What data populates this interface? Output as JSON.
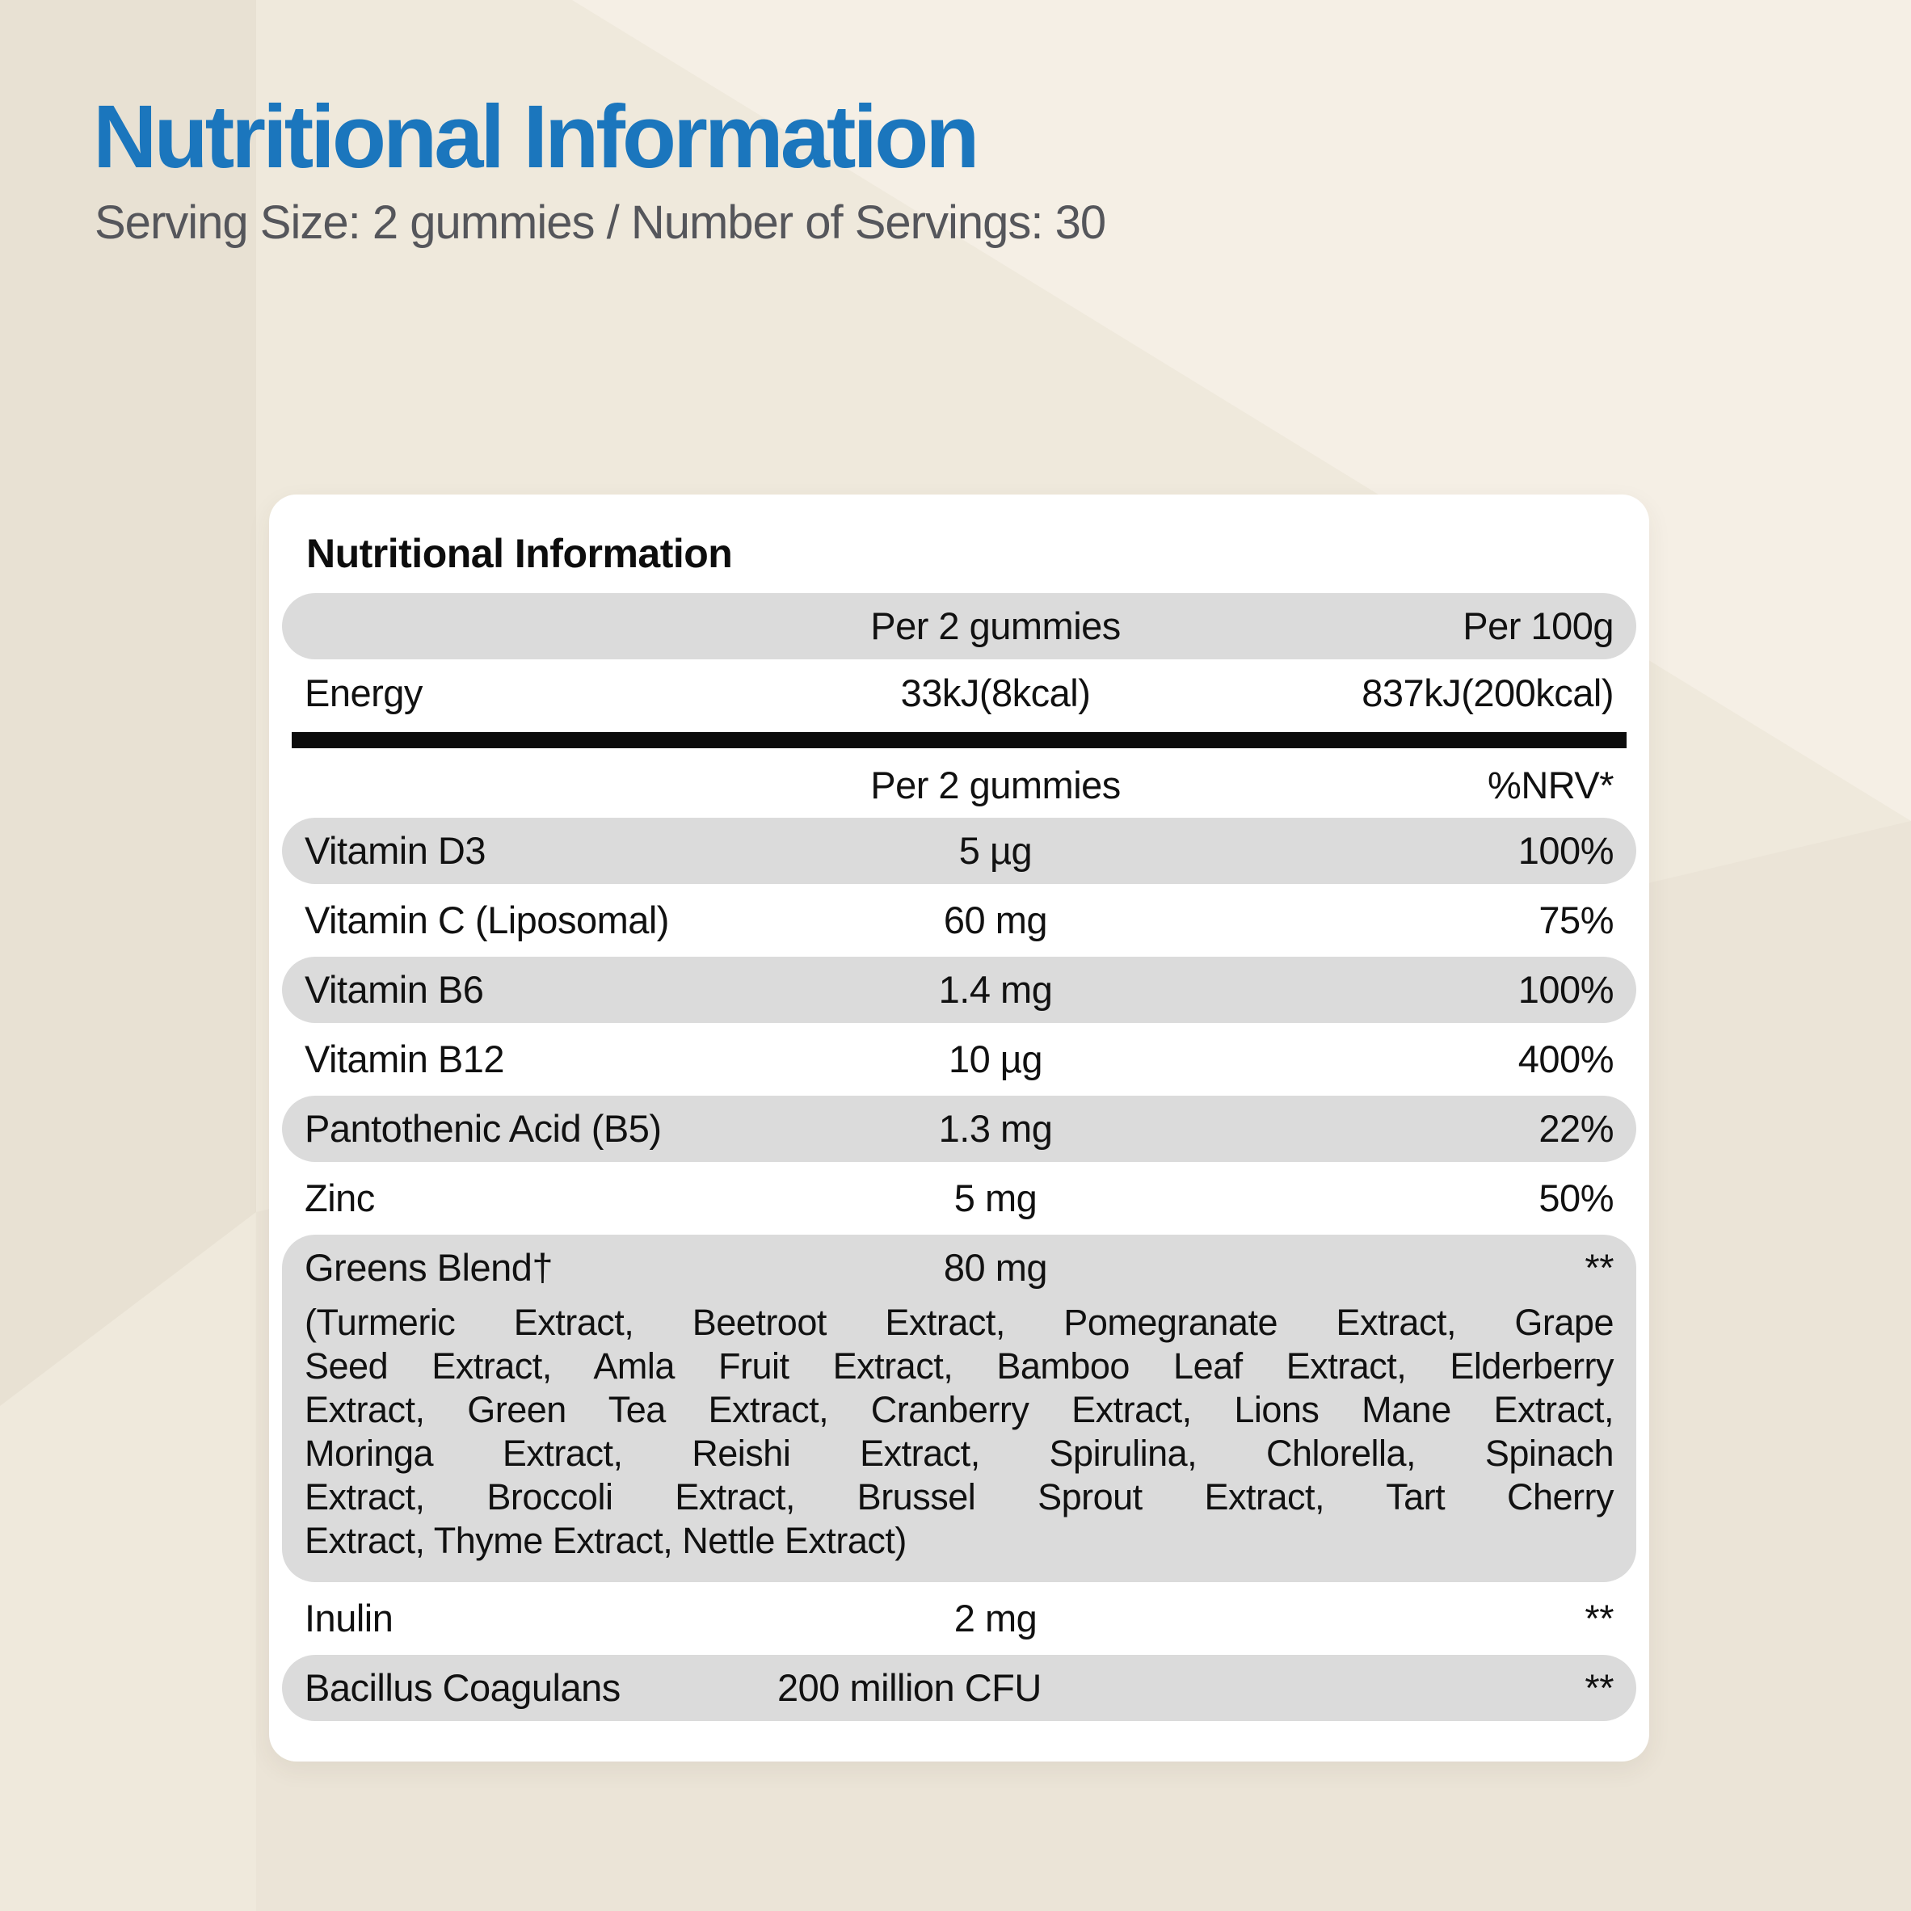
{
  "page": {
    "title": "Nutritional Information",
    "subtitle": "Serving Size: 2 gummies / Number of Servings: 30"
  },
  "panel": {
    "title": "Nutritional Information",
    "energy_header": {
      "col2": "Per 2 gummies",
      "col3": "Per 100g"
    },
    "energy_row": {
      "name": "Energy",
      "per2": "33kJ(8kcal)",
      "per100": "837kJ(200kcal)"
    },
    "nutrient_header": {
      "col2": "Per 2 gummies",
      "col3": "%NRV*"
    },
    "rows": [
      {
        "name": "Vitamin D3",
        "amount": "5 µg",
        "nrv": "100%",
        "shaded": true
      },
      {
        "name": "Vitamin C (Liposomal)",
        "amount": "60 mg",
        "nrv": "75%",
        "shaded": false
      },
      {
        "name": "Vitamin B6",
        "amount": "1.4 mg",
        "nrv": "100%",
        "shaded": true
      },
      {
        "name": "Vitamin B12",
        "amount": "10 µg",
        "nrv": "400%",
        "shaded": false
      },
      {
        "name": "Pantothenic Acid (B5)",
        "amount": "1.3 mg",
        "nrv": "22%",
        "shaded": true
      },
      {
        "name": "Zinc",
        "amount": "5 mg",
        "nrv": "50%",
        "shaded": false
      },
      {
        "name": "Greens Blend†",
        "amount": "80 mg",
        "nrv": "**",
        "shaded": true,
        "description_lines": [
          "(Turmeric Extract, Beetroot Extract, Pomegranate Extract, Grape",
          "Seed Extract, Amla Fruit Extract, Bamboo Leaf Extract, Elderberry",
          "Extract, Green Tea Extract, Cranberry Extract, Lions Mane Extract,",
          "Moringa Extract, Reishi Extract, Spirulina, Chlorella, Spinach",
          "Extract, Broccoli Extract, Brussel Sprout Extract, Tart Cherry",
          "Extract, Thyme Extract, Nettle Extract)"
        ]
      },
      {
        "name": "Inulin",
        "amount": "2 mg",
        "nrv": "**",
        "shaded": false
      },
      {
        "name": "Bacillus Coagulans",
        "amount": "200 million CFU",
        "nrv": "**",
        "shaded": true
      }
    ],
    "colors": {
      "title_blue": "#1b76bd",
      "subtitle_gray": "#55565b",
      "row_pill_gray": "#dbdbdb",
      "divider_black": "#0c0c0c",
      "card_white": "#ffffff",
      "background_cream": "#efe9dc",
      "background_cream_dark": "#e8e1d3",
      "background_cream_light": "#f5efe5"
    }
  }
}
